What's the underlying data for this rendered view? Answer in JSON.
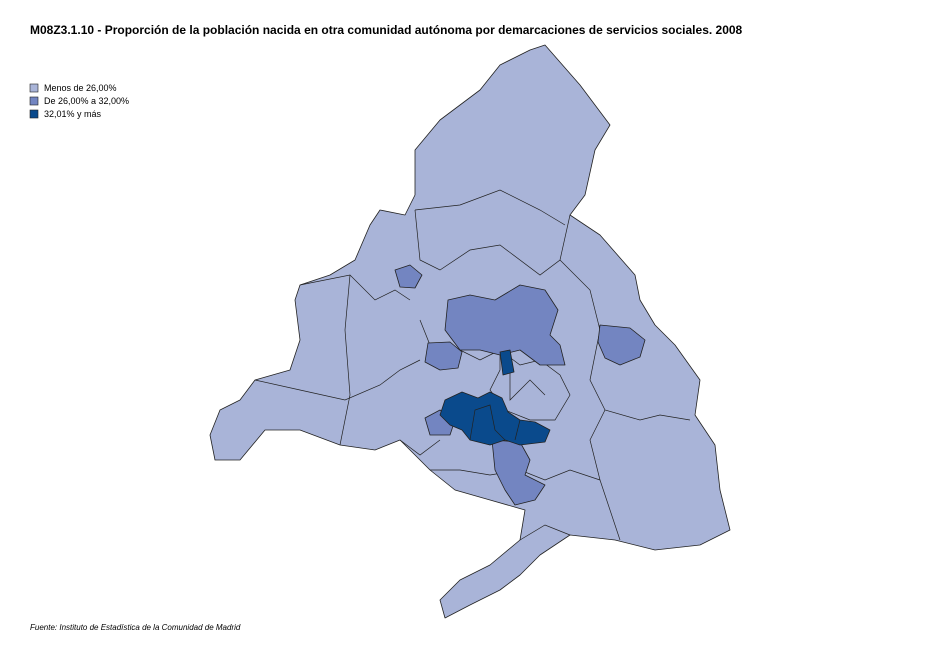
{
  "title": "M08Z3.1.10 - Proporción de la población nacida en otra comunidad autónoma  por demarcaciones de servicios sociales. 2008",
  "legend": {
    "items": [
      {
        "label": "Menos de 26,00%",
        "color": "#a9b4d8"
      },
      {
        "label": "De 26,00% a 32,00%",
        "color": "#7385c1"
      },
      {
        "label": "32,01% y más",
        "color": "#0a4a8c"
      }
    ]
  },
  "source": "Fuente: Instituto de Estadística de la Comunidad de Madrid"
}
